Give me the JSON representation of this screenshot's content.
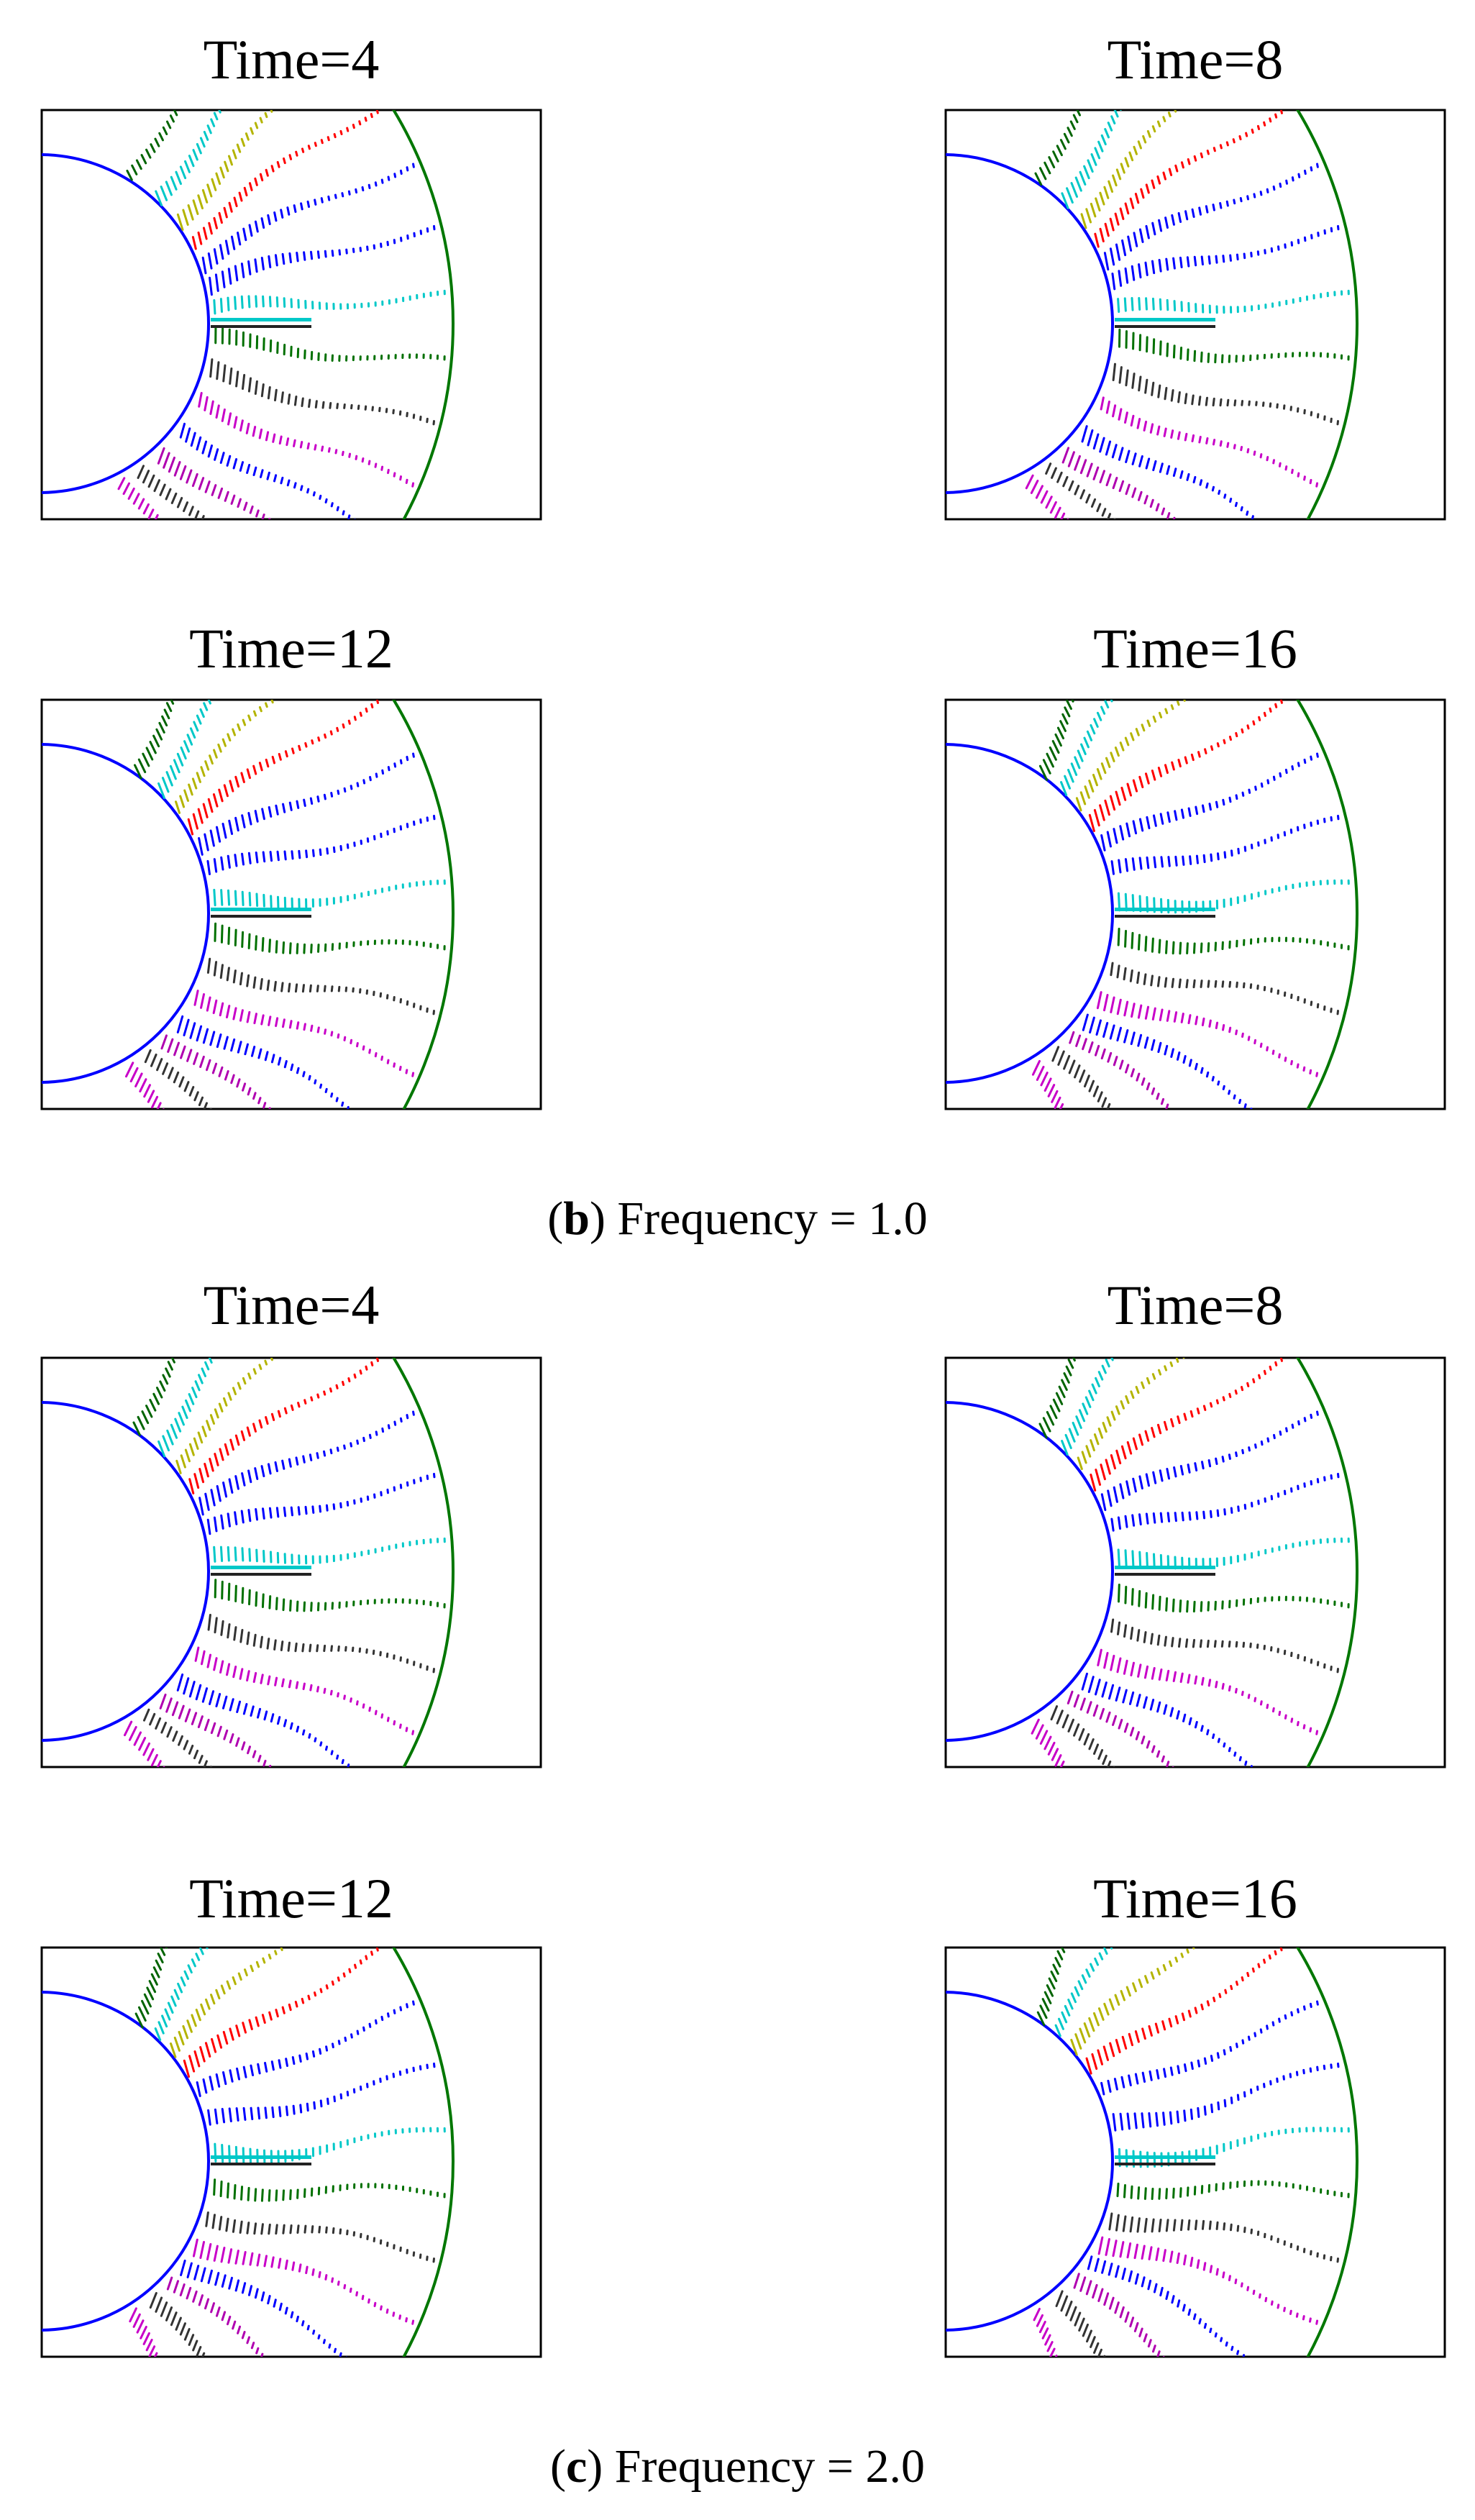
{
  "figure": {
    "captions": [
      {
        "letter": "b",
        "text": ") Frequency = 1.0",
        "open": "("
      },
      {
        "letter": "c",
        "text": ") Frequency = 2.0",
        "open": "("
      }
    ],
    "panels": [
      {
        "title": "Time=4"
      },
      {
        "title": "Time=8"
      },
      {
        "title": "Time=12"
      },
      {
        "title": "Time=16"
      },
      {
        "title": "Time=4"
      },
      {
        "title": "Time=8"
      },
      {
        "title": "Time=12"
      },
      {
        "title": "Time=16"
      }
    ]
  },
  "colors": {
    "inner_circle": "#0000ff",
    "outer_arc": "#007700",
    "frame": "#000000",
    "series": [
      "#006400",
      "#00c8c8",
      "#b4b400",
      "#ff0000",
      "#0000ff",
      "#0000ff",
      "#00c8c8",
      "#007000",
      "#333333",
      "#c800c8",
      "#0000ff",
      "#b000b0",
      "#333333",
      "#c800c8"
    ]
  }
}
